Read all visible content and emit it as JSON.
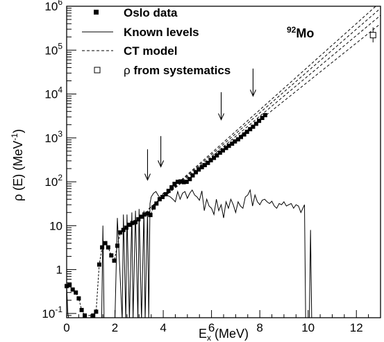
{
  "chart_data": {
    "type": "scatter",
    "title": "",
    "xlabel": "E",
    "xlabel_sub": "x",
    "xlabel_suffix": " (MeV)",
    "ylabel": "ρ (E) (MeV",
    "ylabel_sup": "-1",
    "ylabel_suffix": ")",
    "xlim": [
      0,
      13
    ],
    "ylim": [
      0.08,
      1000000
    ],
    "yscale": "log",
    "x_ticks": [
      0,
      2,
      4,
      6,
      8,
      10,
      12
    ],
    "x_tick_labels": [
      "0",
      "2",
      "4",
      "6",
      "8",
      "10",
      "12"
    ],
    "y_ticks": [
      0.1,
      1,
      10,
      100,
      1000,
      10000,
      100000,
      1000000
    ],
    "y_tick_labels": [
      {
        "base": "10",
        "exp": "-1"
      },
      {
        "base": "1",
        "exp": ""
      },
      {
        "base": "10",
        "exp": ""
      },
      {
        "base": "10",
        "exp": "2"
      },
      {
        "base": "10",
        "exp": "3"
      },
      {
        "base": "10",
        "exp": "4"
      },
      {
        "base": "10",
        "exp": "5"
      },
      {
        "base": "10",
        "exp": "6"
      }
    ],
    "grid": false,
    "legend_position": "top-left",
    "nucleus_label": {
      "mass": "92",
      "symbol": "Mo"
    },
    "legend": [
      {
        "label": "Oslo data",
        "style": "filled-square"
      },
      {
        "label": "Known levels",
        "style": "solid-line"
      },
      {
        "label": "CT model",
        "style": "dashed-line"
      },
      {
        "prefix": "ρ",
        "label": " from systematics",
        "style": "open-square"
      }
    ],
    "series": [
      {
        "name": "Oslo data",
        "style": "filled-square-dashed-connector",
        "x": [
          0.0,
          0.12,
          0.25,
          0.38,
          0.5,
          0.62,
          0.75,
          1.1,
          1.22,
          1.35,
          1.47,
          1.6,
          1.72,
          1.85,
          1.97,
          2.1,
          2.22,
          2.35,
          2.47,
          2.6,
          2.72,
          2.85,
          2.97,
          3.1,
          3.22,
          3.35,
          3.47,
          3.6,
          3.72,
          3.85,
          3.97,
          4.1,
          4.22,
          4.35,
          4.47,
          4.6,
          4.72,
          4.85,
          4.97,
          5.1,
          5.22,
          5.35,
          5.47,
          5.6,
          5.72,
          5.85,
          5.97,
          6.1,
          6.22,
          6.35,
          6.47,
          6.6,
          6.72,
          6.85,
          6.97,
          7.1,
          7.22,
          7.35,
          7.47,
          7.6,
          7.72,
          7.85,
          7.97,
          8.1,
          8.22
        ],
        "y": [
          0.42,
          0.45,
          0.35,
          0.3,
          0.22,
          0.12,
          0.09,
          0.09,
          0.11,
          1.3,
          3.2,
          4.0,
          3.2,
          2.1,
          1.6,
          3.5,
          7.0,
          8.0,
          9.0,
          10.5,
          11.5,
          12.0,
          14.0,
          16.0,
          18.0,
          19.0,
          17.5,
          26.0,
          32.0,
          40.0,
          45.0,
          52.0,
          62.0,
          75.0,
          90.0,
          100.0,
          102.0,
          98.0,
          100.0,
          115.0,
          140.0,
          165.0,
          190.0,
          215.0,
          240.0,
          270.0,
          310.0,
          350.0,
          400.0,
          460.0,
          520.0,
          590.0,
          660.0,
          740.0,
          830.0,
          930.0,
          1050.0,
          1200.0,
          1380.0,
          1580.0,
          1800.0,
          2100.0,
          2450.0,
          2850.0,
          3300.0
        ]
      },
      {
        "name": "Known levels",
        "style": "solid-line-step",
        "x": [
          0.0,
          0.05,
          0.1,
          1.45,
          1.5,
          1.55,
          1.6,
          2.0,
          2.1,
          2.3,
          2.35,
          2.45,
          2.5,
          2.6,
          2.7,
          2.75,
          2.85,
          2.95,
          3.0,
          3.1,
          3.2,
          3.25,
          3.35,
          3.4,
          3.45,
          3.5,
          3.6,
          3.7,
          3.8,
          3.9,
          4.0,
          4.1,
          4.2,
          4.3,
          4.4,
          4.5,
          4.6,
          4.7,
          4.8,
          4.9,
          5.0,
          5.1,
          5.2,
          5.3,
          5.4,
          5.5,
          5.6,
          5.7,
          5.8,
          5.9,
          6.0,
          6.1,
          6.2,
          6.3,
          6.4,
          6.5,
          6.6,
          6.7,
          6.8,
          6.9,
          7.0,
          7.1,
          7.2,
          7.3,
          7.4,
          7.5,
          7.6,
          7.7,
          7.8,
          7.9,
          8.0,
          8.1,
          8.2,
          8.3,
          8.4,
          8.5,
          8.6,
          8.7,
          8.8,
          8.9,
          9.0,
          9.1,
          9.2,
          9.3,
          9.4,
          9.5,
          9.6,
          9.7,
          9.85,
          9.9,
          10.05,
          10.1,
          10.15,
          10.25
        ],
        "y": [
          0.42,
          0.1,
          0.07,
          0.07,
          10.0,
          0.07,
          0.07,
          0.07,
          15.0,
          0.07,
          18.0,
          0.07,
          18.0,
          0.07,
          20.0,
          0.07,
          22.0,
          0.07,
          24.0,
          0.07,
          22.0,
          0.07,
          22.0,
          0.07,
          32.0,
          45.0,
          55.0,
          60.0,
          48.0,
          42.0,
          55.0,
          50.0,
          48.0,
          45.0,
          40.0,
          35.0,
          60.0,
          40.0,
          55.0,
          60.0,
          42.0,
          55.0,
          65.0,
          50.0,
          45.0,
          38.0,
          62.0,
          22.0,
          40.0,
          28.0,
          25.0,
          18.0,
          40.0,
          22.0,
          30.0,
          15.0,
          35.0,
          25.0,
          40.0,
          30.0,
          20.0,
          35.0,
          28.0,
          25.0,
          45.0,
          50.0,
          65.0,
          28.0,
          50.0,
          35.0,
          30.0,
          38.0,
          40.0,
          35.0,
          32.0,
          36.0,
          28.0,
          25.0,
          32.0,
          30.0,
          35.0,
          28.0,
          30.0,
          32.0,
          25.0,
          30.0,
          28.0,
          20.0,
          30.0,
          0.07,
          0.07,
          8.0,
          0.07,
          0.07
        ]
      },
      {
        "name": "CT model",
        "style": "dashed-lines",
        "lines": [
          {
            "x": [
              3.4,
              13.0
            ],
            "y": [
              24.0,
              1250000.0
            ]
          },
          {
            "x": [
              3.4,
              13.0
            ],
            "y": [
              24.0,
              900000.0
            ]
          },
          {
            "x": [
              3.4,
              13.0
            ],
            "y": [
              24.0,
              620000.0
            ]
          },
          {
            "x": [
              3.4,
              13.0
            ],
            "y": [
              24.0,
              400000.0
            ]
          }
        ]
      },
      {
        "name": "ρ from systematics",
        "style": "open-square-errorbar",
        "points": [
          {
            "x": 12.69,
            "y": 220000.0,
            "ylow": 150000.0,
            "yhigh": 330000.0
          }
        ]
      }
    ],
    "annotations": [
      {
        "type": "arrow",
        "x": 3.35,
        "y_start": 550.0,
        "y_end": 110.0
      },
      {
        "type": "arrow",
        "x": 3.9,
        "y_start": 1100.0,
        "y_end": 220.0
      },
      {
        "type": "arrow",
        "x": 6.4,
        "y_start": 11000.0,
        "y_end": 2600.0
      },
      {
        "type": "arrow",
        "x": 7.72,
        "y_start": 38000.0,
        "y_end": 9000.0
      }
    ]
  }
}
